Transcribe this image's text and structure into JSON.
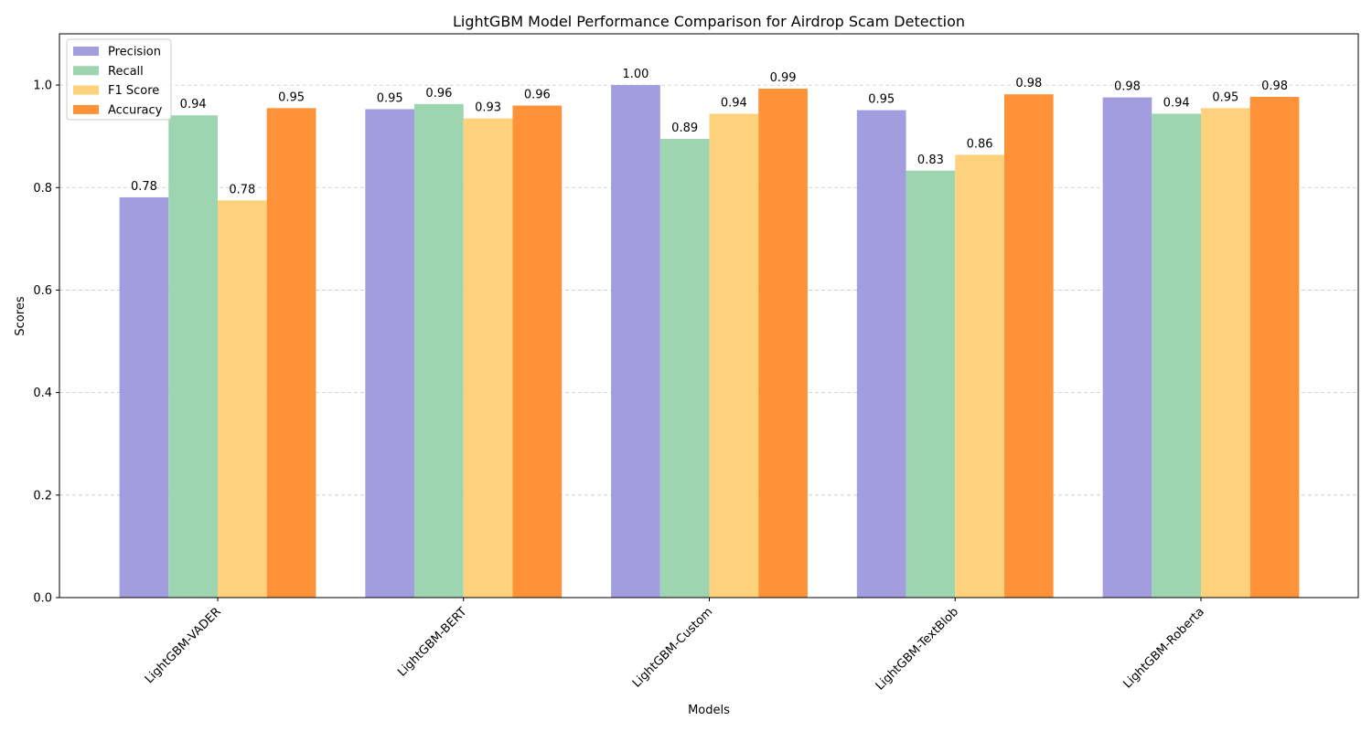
{
  "chart_data": {
    "type": "bar",
    "title": "LightGBM Model Performance Comparison for Airdrop Scam Detection",
    "xlabel": "Models",
    "ylabel": "Scores",
    "ylim": [
      0,
      1.1
    ],
    "yticks": [
      "0.0",
      "0.2",
      "0.4",
      "0.6",
      "0.8",
      "1.0"
    ],
    "grid": "y-dashed",
    "legend_position": "top-left",
    "categories": [
      "LightGBM-VADER",
      "LightGBM-BERT",
      "LightGBM-Custom",
      "LightGBM-TextBlob",
      "LightGBM-Roberta"
    ],
    "series": [
      {
        "name": "Precision",
        "color": "#a29ddf",
        "values": [
          0.781,
          0.953,
          1.0,
          0.951,
          0.976
        ],
        "labels": [
          "0.78",
          "0.95",
          "1.00",
          "0.95",
          "0.98"
        ]
      },
      {
        "name": "Recall",
        "color": "#9dd5b1",
        "values": [
          0.941,
          0.963,
          0.895,
          0.833,
          0.944
        ],
        "labels": [
          "0.94",
          "0.96",
          "0.89",
          "0.83",
          "0.94"
        ]
      },
      {
        "name": "F1 Score",
        "color": "#fed27d",
        "values": [
          0.775,
          0.935,
          0.944,
          0.864,
          0.955
        ],
        "labels": [
          "0.78",
          "0.93",
          "0.94",
          "0.86",
          "0.95"
        ]
      },
      {
        "name": "Accuracy",
        "color": "#fe9239",
        "values": [
          0.955,
          0.96,
          0.993,
          0.982,
          0.977
        ],
        "labels": [
          "0.95",
          "0.96",
          "0.99",
          "0.98",
          "0.98"
        ]
      }
    ]
  }
}
